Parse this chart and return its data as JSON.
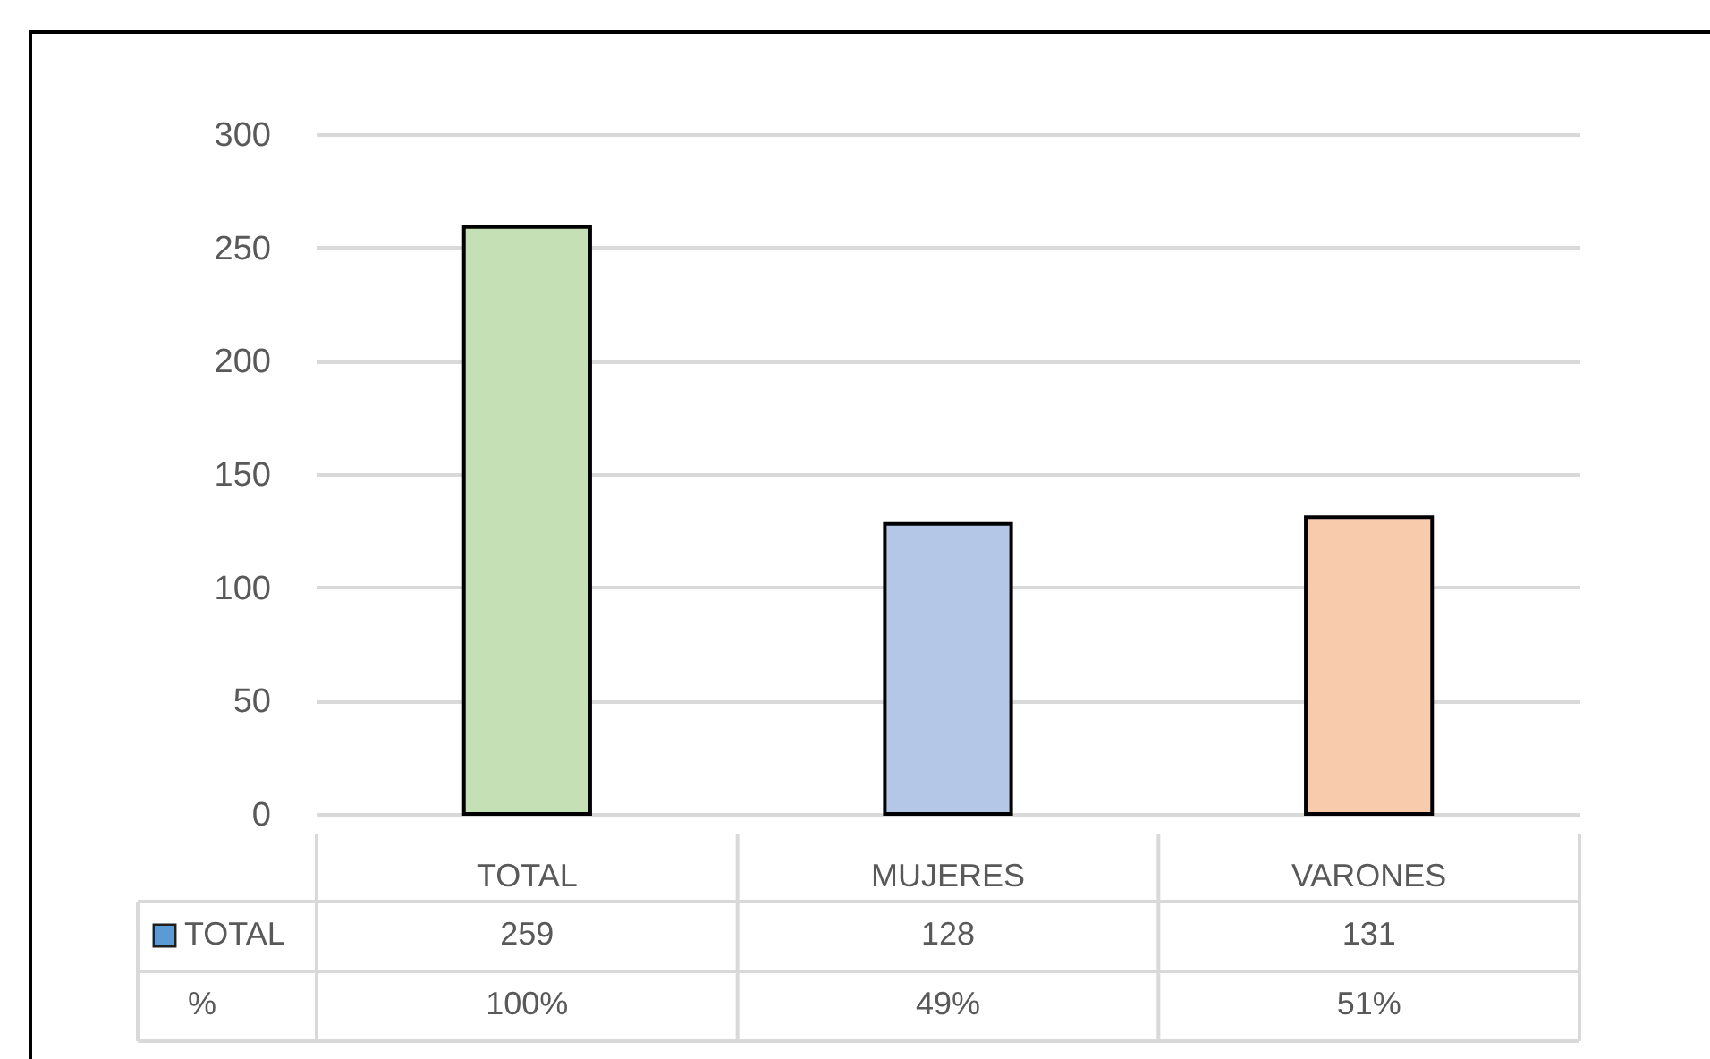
{
  "chart_data": {
    "type": "bar",
    "categories": [
      "TOTAL",
      "MUJERES",
      "VARONES"
    ],
    "series": [
      {
        "name": "TOTAL",
        "color": "#5b9bd5",
        "colors": [
          "#c5e0b4",
          "#b4c7e7",
          "#f8cbad"
        ],
        "values": [
          259,
          128,
          131
        ]
      }
    ],
    "ylim": [
      0,
      300
    ],
    "yticks": [
      0,
      50,
      100,
      150,
      200,
      250,
      300
    ],
    "grid": true,
    "legend": "bottom left",
    "data_labels": true,
    "annotations": [
      "%",
      "100%",
      "49%",
      "51%"
    ]
  }
}
